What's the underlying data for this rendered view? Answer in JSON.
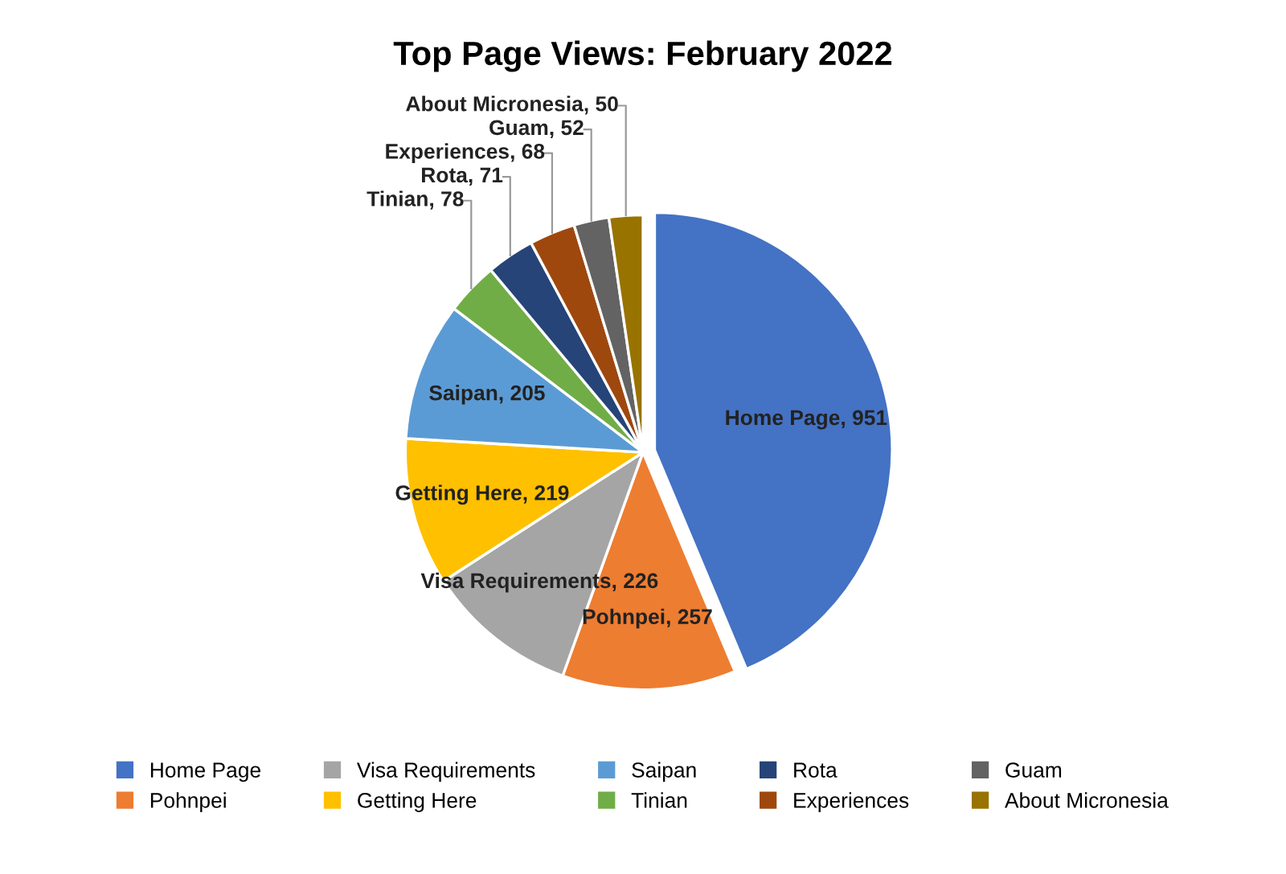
{
  "chart_data": {
    "type": "pie",
    "title": "Top Page Views: February 2022",
    "categories": [
      "Home Page",
      "Pohnpei",
      "Visa Requirements",
      "Getting Here",
      "Saipan",
      "Tinian",
      "Rota",
      "Experiences",
      "Guam",
      "About Micronesia"
    ],
    "values": [
      951,
      257,
      226,
      219,
      205,
      78,
      71,
      68,
      52,
      50
    ],
    "colors": [
      "#4472c4",
      "#ed7d31",
      "#a5a5a5",
      "#ffc000",
      "#5b9bd5",
      "#70ad47",
      "#264478",
      "#9e480e",
      "#636363",
      "#997300"
    ],
    "value_labels": [
      "Home Page, 951",
      "Pohnpei, 257",
      "Visa Requirements, 226",
      "Getting Here, 219",
      "Saipan, 205",
      "Tinian, 78",
      "Rota, 71",
      "Experiences, 68",
      "Guam, 52",
      "About Micronesia, 50"
    ],
    "legend": "bottom"
  }
}
